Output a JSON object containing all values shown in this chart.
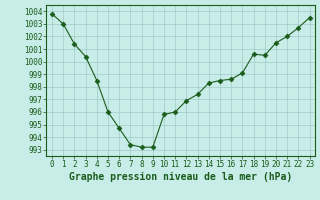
{
  "x": [
    0,
    1,
    2,
    3,
    4,
    5,
    6,
    7,
    8,
    9,
    10,
    11,
    12,
    13,
    14,
    15,
    16,
    17,
    18,
    19,
    20,
    21,
    22,
    23
  ],
  "y": [
    1003.8,
    1003.0,
    1001.4,
    1000.4,
    998.5,
    996.0,
    994.7,
    993.4,
    993.2,
    993.2,
    995.8,
    996.0,
    996.9,
    997.4,
    998.3,
    998.5,
    998.6,
    999.1,
    1000.6,
    1000.5,
    1001.5,
    1002.0,
    1002.7,
    1003.5
  ],
  "line_color": "#1a5c1a",
  "marker": "D",
  "marker_size": 2.5,
  "bg_color": "#c8ece8",
  "grid_color": "#a0ccc8",
  "ylim": [
    992.5,
    1004.5
  ],
  "xlim": [
    -0.5,
    23.5
  ],
  "yticks": [
    993,
    994,
    995,
    996,
    997,
    998,
    999,
    1000,
    1001,
    1002,
    1003,
    1004
  ],
  "xticks": [
    0,
    1,
    2,
    3,
    4,
    5,
    6,
    7,
    8,
    9,
    10,
    11,
    12,
    13,
    14,
    15,
    16,
    17,
    18,
    19,
    20,
    21,
    22,
    23
  ],
  "tick_fontsize": 5.5,
  "xlabel": "Graphe pression niveau de la mer (hPa)",
  "xlabel_fontsize": 7.0
}
